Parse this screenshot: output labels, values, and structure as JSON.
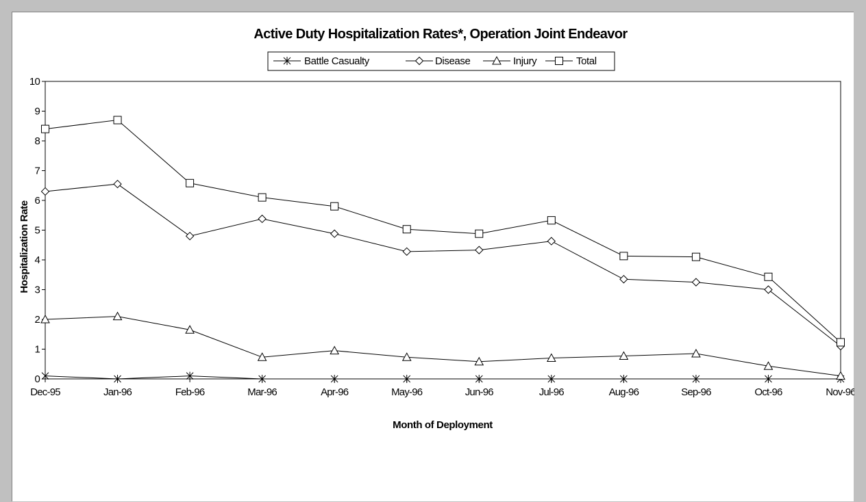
{
  "chart_data": {
    "type": "line",
    "title": "Active Duty Hospitalization Rates*, Operation Joint Endeavor",
    "xlabel": "Month of Deployment",
    "ylabel": "Hospitalization Rate",
    "ylim": [
      0,
      10
    ],
    "yticks": [
      0,
      1,
      2,
      3,
      4,
      5,
      6,
      7,
      8,
      9,
      10
    ],
    "grid": false,
    "legend_position": "top-center",
    "categories": [
      "Dec-95",
      "Jan-96",
      "Feb-96",
      "Mar-96",
      "Apr-96",
      "May-96",
      "Jun-96",
      "Jul-96",
      "Aug-96",
      "Sep-96",
      "Oct-96",
      "Nov-96"
    ],
    "series": [
      {
        "name": "Battle Casualty",
        "marker": "asterisk",
        "values": [
          0.1,
          0.0,
          0.1,
          0.0,
          0.0,
          0.0,
          0.0,
          0.0,
          0.0,
          0.0,
          0.0,
          0.0
        ]
      },
      {
        "name": "Disease",
        "marker": "diamond",
        "values": [
          6.3,
          6.55,
          4.8,
          5.38,
          4.88,
          4.28,
          4.33,
          4.63,
          3.35,
          3.25,
          3.0,
          1.1
        ]
      },
      {
        "name": "Injury",
        "marker": "triangle",
        "values": [
          2.0,
          2.1,
          1.65,
          0.73,
          0.95,
          0.73,
          0.58,
          0.7,
          0.77,
          0.85,
          0.43,
          0.1
        ]
      },
      {
        "name": "Total",
        "marker": "square",
        "values": [
          8.4,
          8.7,
          6.58,
          6.1,
          5.8,
          5.03,
          4.88,
          5.33,
          4.13,
          4.1,
          3.43,
          1.23
        ]
      }
    ],
    "colors": {
      "line": "#000000",
      "plot_background": "#ffffff",
      "outer_background": "#c0c0c0"
    }
  }
}
